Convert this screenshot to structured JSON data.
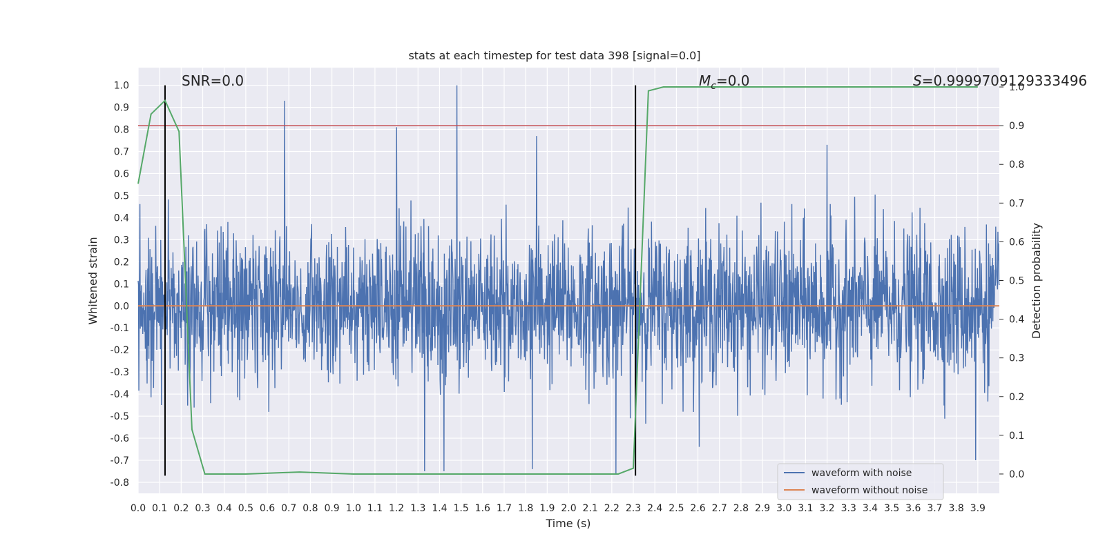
{
  "chart_data": {
    "type": "line",
    "title": "stats at each timestep for test data 398 [signal=0.0]",
    "xlabel": "Time (s)",
    "ylabel_left": "Whitened strain",
    "ylabel_right": "Detection probability",
    "xlim": [
      0.0,
      4.0
    ],
    "ylim_left": [
      -0.85,
      1.08
    ],
    "ylim_right": [
      -0.05,
      1.05
    ],
    "x_ticks": [
      "0.0",
      "0.1",
      "0.2",
      "0.3",
      "0.4",
      "0.5",
      "0.6",
      "0.7",
      "0.8",
      "0.9",
      "1.0",
      "1.1",
      "1.2",
      "1.3",
      "1.4",
      "1.5",
      "1.6",
      "1.7",
      "1.8",
      "1.9",
      "2.0",
      "2.1",
      "2.2",
      "2.3",
      "2.4",
      "2.5",
      "2.6",
      "2.7",
      "2.8",
      "2.9",
      "3.0",
      "3.1",
      "3.2",
      "3.3",
      "3.4",
      "3.5",
      "3.6",
      "3.7",
      "3.8",
      "3.9"
    ],
    "y_left_ticks": [
      "-0.8",
      "-0.7",
      "-0.6",
      "-0.5",
      "-0.4",
      "-0.3",
      "-0.2",
      "-0.1",
      "0.0",
      "0.1",
      "0.2",
      "0.3",
      "0.4",
      "0.5",
      "0.6",
      "0.7",
      "0.8",
      "0.9",
      "1.0"
    ],
    "y_right_ticks": [
      "0.0",
      "0.1",
      "0.2",
      "0.3",
      "0.4",
      "0.5",
      "0.6",
      "0.7",
      "0.8",
      "0.9",
      "1.0"
    ],
    "annotations": {
      "snr": "SNR=0.0",
      "mc_symbol": "M",
      "mc_sub": "c",
      "mc_value": "=0.0",
      "s_symbol": "S",
      "s_value": "=0.9999709129333496"
    },
    "legend": {
      "placement": "lower-right",
      "entries": [
        "waveform with noise",
        "waveform without noise"
      ]
    },
    "series": [
      {
        "name": "waveform with noise",
        "axis": "left",
        "color": "#4c72b0",
        "peaks": [
          [
            0.68,
            0.93
          ],
          [
            1.2,
            0.81
          ],
          [
            1.48,
            1.0
          ],
          [
            1.85,
            0.77
          ],
          [
            3.2,
            0.73
          ]
        ],
        "troughs": [
          [
            1.33,
            -0.75
          ],
          [
            1.42,
            -0.75
          ],
          [
            1.83,
            -0.74
          ],
          [
            2.22,
            -0.76
          ],
          [
            3.89,
            -0.7
          ]
        ]
      },
      {
        "name": "waveform without noise",
        "axis": "left",
        "color": "#dd8452",
        "x": [
          0.0,
          4.0
        ],
        "y": [
          0.0,
          0.0
        ]
      },
      {
        "name": "detection probability",
        "axis": "right",
        "color": "#55a868",
        "x": [
          0.0,
          0.06,
          0.125,
          0.19,
          0.25,
          0.31,
          0.5,
          0.75,
          1.0,
          1.5,
          2.0,
          2.23,
          2.3,
          2.37,
          2.44,
          2.7,
          3.0,
          3.5,
          3.9
        ],
        "y": [
          0.75,
          0.93,
          0.965,
          0.885,
          0.115,
          0.0,
          0.0,
          0.005,
          0.0,
          0.0,
          0.0,
          0.0,
          0.015,
          0.99,
          1.0,
          1.0,
          1.0,
          1.0,
          1.0
        ]
      }
    ],
    "threshold": {
      "axis": "right",
      "value": 0.9,
      "color": "#c44e52"
    },
    "vlines": [
      0.125,
      2.31
    ],
    "vline_color": "#000000",
    "background": "#eaeaf2",
    "grid": true
  }
}
